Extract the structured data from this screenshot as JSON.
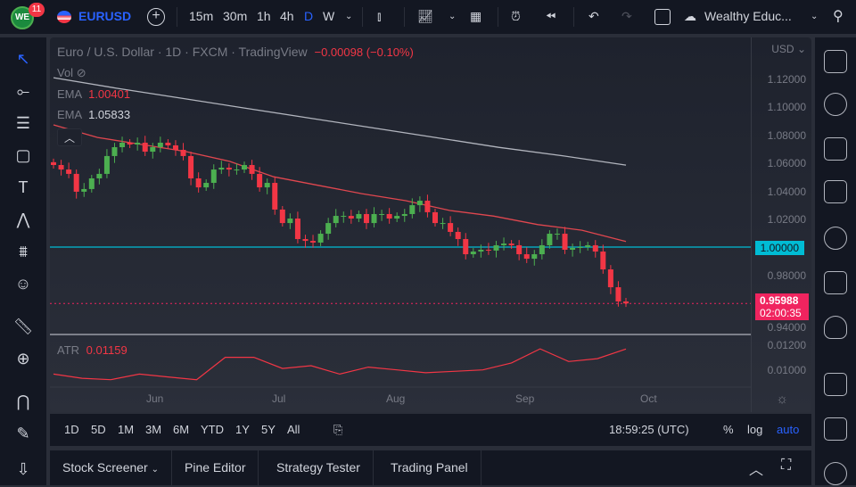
{
  "header": {
    "notifications": "11",
    "logo_text": "WE",
    "symbol": "EURUSD",
    "intervals": [
      "15m",
      "30m",
      "1h",
      "4h",
      "D",
      "W"
    ],
    "active_interval": "D",
    "account": "Wealthy Educ..."
  },
  "legend": {
    "title": "Euro / U.S. Dollar · 1D · FXCM · TradingView",
    "change": "−0.00098 (−0.10%)",
    "vol": "Vol",
    "ema1_label": "EMA",
    "ema1_value": "1.00401",
    "ema2_label": "EMA",
    "ema2_value": "1.05833",
    "atr_label": "ATR",
    "atr_value": "0.01159"
  },
  "price_axis": {
    "currency": "USD",
    "ticks": [
      "1.12000",
      "1.10000",
      "1.08000",
      "1.06000",
      "1.04000",
      "1.02000",
      "0.98000",
      "0.94000"
    ],
    "level_line": "1.00000",
    "last_price": "0.95988",
    "countdown": "02:00:35",
    "atr_ticks": [
      "0.01200",
      "0.01000"
    ]
  },
  "time_axis": [
    "Jun",
    "Jul",
    "Aug",
    "Sep",
    "Oct"
  ],
  "bottom_bar": {
    "ranges": [
      "1D",
      "5D",
      "1M",
      "3M",
      "6M",
      "YTD",
      "1Y",
      "5Y",
      "All"
    ],
    "clock": "18:59:25 (UTC)",
    "percent": "%",
    "log": "log",
    "auto": "auto"
  },
  "bottom_tabs": [
    "Stock Screener",
    "Pine Editor",
    "Strategy Tester",
    "Trading Panel"
  ],
  "colors": {
    "up": "#4caf50",
    "down": "#f23645",
    "ema_fast": "#e0474f",
    "ema_slow": "#b2b5be",
    "level": "#00bcd4",
    "accent": "#2962ff",
    "last_price": "#f0245f"
  },
  "chart_data": {
    "type": "candlestick",
    "ylim": [
      0.94,
      1.13
    ],
    "closes": [
      1.0584,
      1.0552,
      1.0521,
      1.0394,
      1.0413,
      1.0489,
      1.0521,
      1.0648,
      1.0711,
      1.0743,
      1.073,
      1.0743,
      1.0679,
      1.0711,
      1.0743,
      1.0724,
      1.0692,
      1.0648,
      1.0489,
      1.0425,
      1.0457,
      1.0552,
      1.0565,
      1.0552,
      1.0552,
      1.0584,
      1.0521,
      1.0425,
      1.0457,
      1.0267,
      1.0171,
      1.0203,
      1.0057,
      1.0044,
      1.0032,
      1.0095,
      1.0171,
      1.0222,
      1.0222,
      1.0203,
      1.0235,
      1.0171,
      1.0235,
      1.0235,
      1.0203,
      1.0222,
      1.0235,
      1.0298,
      1.033,
      1.0248,
      1.0171,
      1.0171,
      1.0108,
      1.0057,
      0.9949,
      0.9968,
      0.9981,
      0.9975,
      1.0013,
      1.0025,
      1.0013,
      0.9949,
      0.9917,
      0.9949,
      1.0013,
      1.0095,
      1.0095,
      0.9981,
      0.9994,
      1.0,
      1.0013,
      0.9968,
      0.9841,
      0.9714,
      0.9613,
      0.95988
    ],
    "ema_fast": [
      1.087,
      1.078,
      1.073,
      1.068,
      1.061,
      1.05,
      1.044,
      1.038,
      1.033,
      1.026,
      1.022,
      1.016,
      1.012,
      1.00401
    ],
    "ema_slow": [
      1.1206,
      1.113,
      1.106,
      1.099,
      1.092,
      1.085,
      1.078,
      1.071,
      1.065,
      1.05833
    ],
    "atr": [
      0.0098,
      0.0095,
      0.0094,
      0.0098,
      0.0096,
      0.0094,
      0.011,
      0.011,
      0.0102,
      0.0104,
      0.0098,
      0.0103,
      0.0101,
      0.0099,
      0.01,
      0.0101,
      0.0106,
      0.0116,
      0.0107,
      0.0109,
      0.01159
    ],
    "atr_ylim": [
      0.009,
      0.0125
    ]
  }
}
